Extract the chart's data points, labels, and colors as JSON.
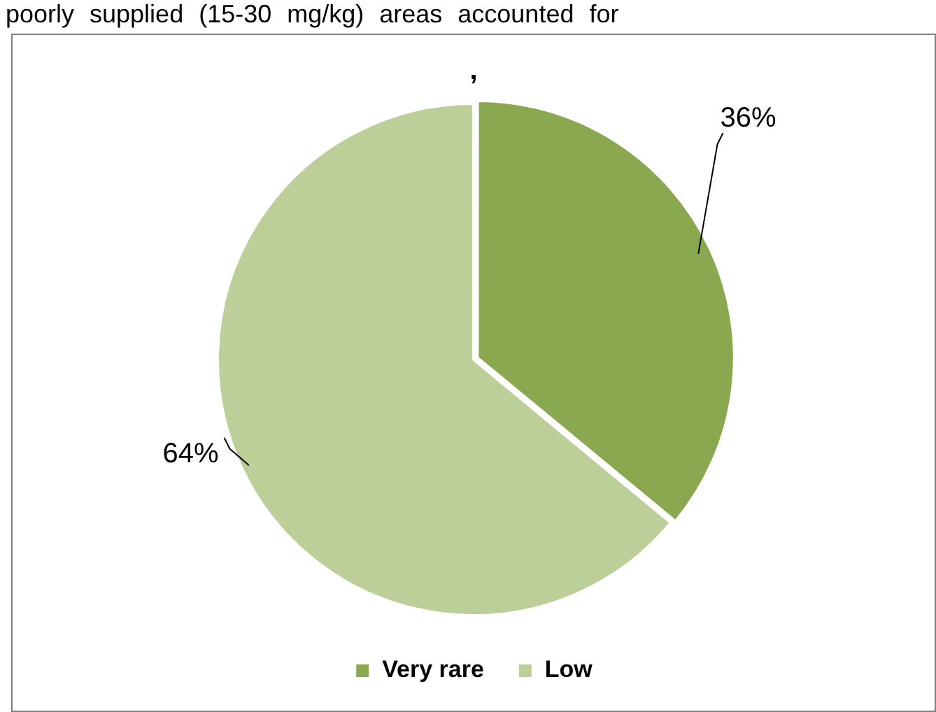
{
  "chart_data": {
    "type": "pie",
    "title": ",",
    "annotations": [
      "poorly supplied (15-30 mg/kg) areas accounted for"
    ],
    "categories": [
      "Very rare",
      "Low"
    ],
    "values": [
      36,
      64
    ],
    "colors": [
      "#8aa84f",
      "#bccf99"
    ],
    "value_labels": [
      "36%",
      "64%"
    ],
    "legend": "bottom"
  }
}
